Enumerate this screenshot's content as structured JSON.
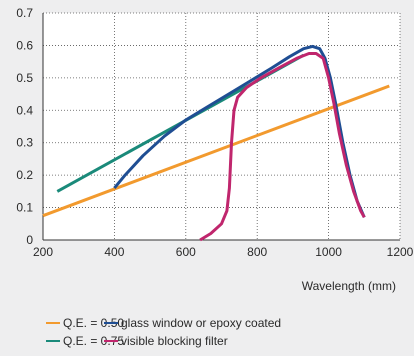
{
  "chart_data": {
    "type": "line",
    "title": "",
    "xlabel": "Wavelength (mm)",
    "ylabel": "",
    "xlim": [
      200,
      1200
    ],
    "ylim": [
      0,
      0.7
    ],
    "xticks": [
      "200",
      "400",
      "600",
      "800",
      "1000",
      "1200"
    ],
    "yticks": [
      "0",
      "0.1",
      "0.2",
      "0.3",
      "0.4",
      "0.5",
      "0.6",
      "0.7"
    ],
    "grid": true,
    "legend_position": "bottom",
    "series": [
      {
        "name": "Q.E. = 0.50",
        "color": "#f29a2e",
        "x": [
          200,
          1170
        ],
        "y": [
          0.075,
          0.475
        ]
      },
      {
        "name": "Q.E. = 0.75",
        "color": "#1a8a7a",
        "x": [
          240,
          930
        ],
        "y": [
          0.15,
          0.57
        ]
      },
      {
        "name": "glass window or epoxy coated",
        "color": "#1f4e93",
        "x": [
          400,
          430,
          480,
          540,
          600,
          660,
          720,
          780,
          840,
          890,
          930,
          955,
          975,
          990,
          1005,
          1020,
          1040,
          1060,
          1080,
          1100
        ],
        "y": [
          0.16,
          0.2,
          0.26,
          0.32,
          0.37,
          0.41,
          0.45,
          0.49,
          0.53,
          0.565,
          0.59,
          0.597,
          0.59,
          0.56,
          0.5,
          0.42,
          0.3,
          0.2,
          0.12,
          0.07
        ]
      },
      {
        "name": "visible blocking filter",
        "color": "#c0266d",
        "x": [
          640,
          670,
          700,
          715,
          722,
          728,
          735,
          745,
          770,
          810,
          860,
          910,
          945,
          965,
          985,
          1000,
          1015,
          1030,
          1050,
          1070,
          1090,
          1100
        ],
        "y": [
          0.0,
          0.02,
          0.05,
          0.09,
          0.16,
          0.3,
          0.4,
          0.44,
          0.47,
          0.5,
          0.53,
          0.56,
          0.575,
          0.575,
          0.56,
          0.5,
          0.42,
          0.33,
          0.23,
          0.15,
          0.09,
          0.07
        ]
      }
    ]
  },
  "legend": {
    "rows": [
      [
        0,
        2
      ],
      [
        1,
        3
      ]
    ]
  }
}
